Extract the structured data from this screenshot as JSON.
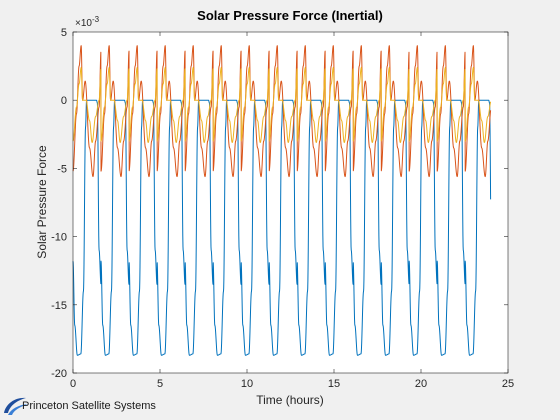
{
  "chart_data": {
    "type": "line",
    "title": "Solar Pressure Force (Inertial)",
    "xlabel": "Time (hours)",
    "ylabel": "Solar Pressure Force",
    "y_exponent_label": "×10",
    "y_exponent_value": "-3",
    "xlim": [
      0,
      25
    ],
    "ylim": [
      -20,
      5
    ],
    "x_ticks": [
      0,
      5,
      10,
      15,
      20,
      25
    ],
    "y_ticks": [
      5,
      0,
      -5,
      -10,
      -15,
      -20
    ],
    "grid": false,
    "legend": "none",
    "period_hours": 1.61,
    "x_end": 24,
    "series": [
      {
        "color": "#0072bd",
        "description_points": [
          [
            0,
            -11.8
          ],
          [
            0.1,
            -16.5
          ],
          [
            0.25,
            -18.7
          ],
          [
            0.45,
            -18.6
          ],
          [
            0.6,
            -14
          ],
          [
            0.72,
            -2
          ],
          [
            0.78,
            0
          ],
          [
            1.35,
            0
          ],
          [
            1.4,
            -0.2
          ],
          [
            1.5,
            -11
          ],
          [
            1.61,
            -13.5
          ]
        ]
      },
      {
        "color": "#d95319",
        "description_points": [
          [
            0,
            -5.2
          ],
          [
            0.2,
            -1
          ],
          [
            0.35,
            2.5
          ],
          [
            0.47,
            4.0
          ],
          [
            0.55,
            0
          ],
          [
            0.7,
            1.4
          ],
          [
            0.95,
            -3.5
          ],
          [
            1.15,
            -5.6
          ],
          [
            1.3,
            -3
          ],
          [
            1.5,
            -0.5
          ],
          [
            1.61,
            3.6
          ]
        ]
      },
      {
        "color": "#edb120",
        "description_points": [
          [
            0,
            -3.0
          ],
          [
            0.2,
            -0.5
          ],
          [
            0.35,
            1.2
          ],
          [
            0.47,
            2.4
          ],
          [
            0.55,
            0
          ],
          [
            0.75,
            0
          ],
          [
            0.95,
            -1.5
          ],
          [
            1.1,
            -3.1
          ],
          [
            1.3,
            -1.2
          ],
          [
            1.5,
            0
          ],
          [
            1.61,
            2.3
          ]
        ]
      }
    ]
  },
  "logo": {
    "text": "Princeton Satellite Systems",
    "colors": [
      "#1f4e9c",
      "#3a7fd5"
    ]
  }
}
